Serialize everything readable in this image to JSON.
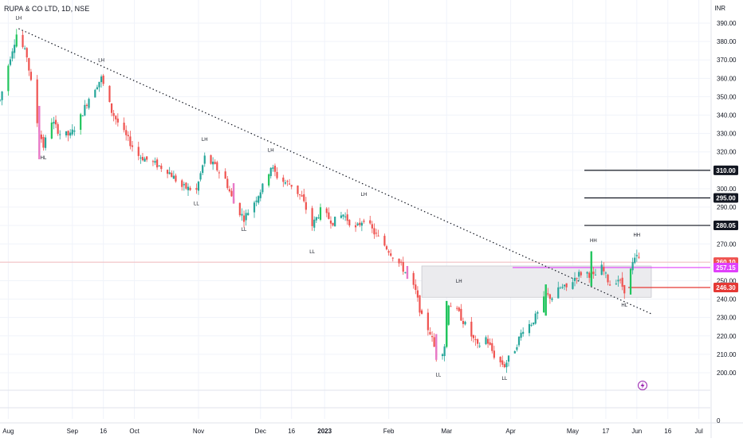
{
  "symbol_title": "RUPA & CO LTD, 1D, NSE",
  "currency": "INR",
  "colors": {
    "up": "#26a69a",
    "up_bright": "#22c55e",
    "down": "#ef5350",
    "pink": "#e879c7",
    "magenta": "#e040fb",
    "resistance_red": "#e53935",
    "level_black": "#131722",
    "grid": "#f0f3fa",
    "box_fill": "#ebebee"
  },
  "chart_data": {
    "type": "candlestick",
    "title": "RUPA & CO LTD, 1D, NSE",
    "y_unit": "INR",
    "y_range": [
      190,
      396
    ],
    "y_ticks": [
      "390.00",
      "380.00",
      "370.00",
      "360.00",
      "350.00",
      "340.00",
      "330.00",
      "320.00",
      "310.00",
      "300.00",
      "290.00",
      "280.00",
      "270.00",
      "260.00",
      "250.00",
      "240.00",
      "230.00",
      "220.00",
      "210.00",
      "200.00"
    ],
    "x_range": [
      "2022-07-28",
      "2023-07-05"
    ],
    "x_ticks": [
      {
        "label": "Aug",
        "date": "2022-08-01"
      },
      {
        "label": "Sep",
        "date": "2022-09-01"
      },
      {
        "label": "16",
        "date": "2022-09-16"
      },
      {
        "label": "Oct",
        "date": "2022-10-01"
      },
      {
        "label": "Nov",
        "date": "2022-11-01"
      },
      {
        "label": "Dec",
        "date": "2022-12-01"
      },
      {
        "label": "16",
        "date": "2022-12-16"
      },
      {
        "label": "2023",
        "date": "2023-01-01"
      },
      {
        "label": "Feb",
        "date": "2023-02-01"
      },
      {
        "label": "Mar",
        "date": "2023-03-01"
      },
      {
        "label": "Apr",
        "date": "2023-04-01"
      },
      {
        "label": "May",
        "date": "2023-05-01"
      },
      {
        "label": "17",
        "date": "2023-05-17"
      },
      {
        "label": "Jun",
        "date": "2023-06-01"
      },
      {
        "label": "16",
        "date": "2023-06-16"
      },
      {
        "label": "Jul",
        "date": "2023-07-01"
      }
    ],
    "price_path": [
      [
        "2022-07-28",
        348
      ],
      [
        "2022-08-02",
        372
      ],
      [
        "2022-08-05",
        384
      ],
      [
        "2022-08-10",
        372
      ],
      [
        "2022-08-15",
        336
      ],
      [
        "2022-08-18",
        323
      ],
      [
        "2022-08-22",
        337
      ],
      [
        "2022-08-26",
        330
      ],
      [
        "2022-08-31",
        329
      ],
      [
        "2022-09-05",
        339
      ],
      [
        "2022-09-10",
        352
      ],
      [
        "2022-09-15",
        360
      ],
      [
        "2022-09-20",
        342
      ],
      [
        "2022-09-26",
        330
      ],
      [
        "2022-10-03",
        318
      ],
      [
        "2022-10-10",
        314
      ],
      [
        "2022-10-17",
        310
      ],
      [
        "2022-10-24",
        301
      ],
      [
        "2022-10-31",
        299
      ],
      [
        "2022-11-04",
        317
      ],
      [
        "2022-11-09",
        312
      ],
      [
        "2022-11-14",
        305
      ],
      [
        "2022-11-18",
        292
      ],
      [
        "2022-11-23",
        284
      ],
      [
        "2022-11-28",
        293
      ],
      [
        "2022-12-02",
        301
      ],
      [
        "2022-12-06",
        312
      ],
      [
        "2022-12-10",
        305
      ],
      [
        "2022-12-16",
        302
      ],
      [
        "2022-12-21",
        295
      ],
      [
        "2022-12-26",
        280
      ],
      [
        "2022-12-30",
        288
      ],
      [
        "2023-01-05",
        282
      ],
      [
        "2023-01-10",
        286
      ],
      [
        "2023-01-16",
        278
      ],
      [
        "2023-01-20",
        284
      ],
      [
        "2023-01-25",
        276
      ],
      [
        "2023-01-31",
        268
      ],
      [
        "2023-02-07",
        258
      ],
      [
        "2023-02-10",
        253
      ],
      [
        "2023-02-14",
        244
      ],
      [
        "2023-02-17",
        230
      ],
      [
        "2023-02-21",
        222
      ],
      [
        "2023-02-25",
        206
      ],
      [
        "2023-02-28",
        215
      ],
      [
        "2023-03-02",
        238
      ],
      [
        "2023-03-07",
        232
      ],
      [
        "2023-03-11",
        224
      ],
      [
        "2023-03-16",
        214
      ],
      [
        "2023-03-20",
        219
      ],
      [
        "2023-03-25",
        207
      ],
      [
        "2023-03-29",
        204
      ],
      [
        "2023-04-03",
        213
      ],
      [
        "2023-04-07",
        224
      ],
      [
        "2023-04-11",
        227
      ],
      [
        "2023-04-14",
        232
      ],
      [
        "2023-04-18",
        242
      ],
      [
        "2023-04-21",
        241
      ],
      [
        "2023-04-25",
        246
      ],
      [
        "2023-04-28",
        246
      ],
      [
        "2023-05-03",
        253
      ],
      [
        "2023-05-07",
        255
      ],
      [
        "2023-05-11",
        252
      ],
      [
        "2023-05-15",
        257
      ],
      [
        "2023-05-19",
        248
      ],
      [
        "2023-05-23",
        251
      ],
      [
        "2023-05-26",
        245
      ],
      [
        "2023-05-30",
        259
      ],
      [
        "2023-06-01",
        263
      ],
      [
        "2023-06-03",
        260
      ]
    ],
    "levels": [
      {
        "price": 310.0,
        "label": "310.00",
        "color": "#131722"
      },
      {
        "price": 295.0,
        "label": "295.00",
        "color": "#131722"
      },
      {
        "price": 280.05,
        "label": "280.05",
        "color": "#131722"
      },
      {
        "price": 260.1,
        "label": "260.10",
        "color": "#ef5350"
      },
      {
        "price": 257.15,
        "label": "257.15",
        "color": "#e040fb"
      },
      {
        "price": 246.3,
        "label": "246.30",
        "color": "#e53935"
      }
    ],
    "zone": {
      "start": "2023-02-17",
      "end": "2023-06-08",
      "low": 241,
      "high": 258
    },
    "trendline": {
      "from": [
        "2022-08-06",
        387
      ],
      "to": [
        "2023-06-08",
        232
      ]
    },
    "swing_labels": [
      {
        "text": "LH",
        "date": "2022-08-06",
        "price": 392
      },
      {
        "text": "HL",
        "date": "2022-08-18",
        "price": 316
      },
      {
        "text": "LH",
        "date": "2022-09-15",
        "price": 369
      },
      {
        "text": "LH",
        "date": "2022-11-04",
        "price": 326
      },
      {
        "text": "LL",
        "date": "2022-10-31",
        "price": 291
      },
      {
        "text": "LL",
        "date": "2022-11-23",
        "price": 277
      },
      {
        "text": "LH",
        "date": "2022-12-06",
        "price": 320
      },
      {
        "text": "LL",
        "date": "2022-12-26",
        "price": 265
      },
      {
        "text": "LH",
        "date": "2023-01-20",
        "price": 296
      },
      {
        "text": "LL",
        "date": "2023-02-25",
        "price": 198
      },
      {
        "text": "LH",
        "date": "2023-03-07",
        "price": 249
      },
      {
        "text": "LL",
        "date": "2023-03-29",
        "price": 196
      },
      {
        "text": "HH",
        "date": "2023-05-11",
        "price": 271
      },
      {
        "text": "HL",
        "date": "2023-05-26",
        "price": 236
      },
      {
        "text": "HH",
        "date": "2023-06-01",
        "price": 274
      }
    ],
    "bottom_axis_value": "0"
  }
}
